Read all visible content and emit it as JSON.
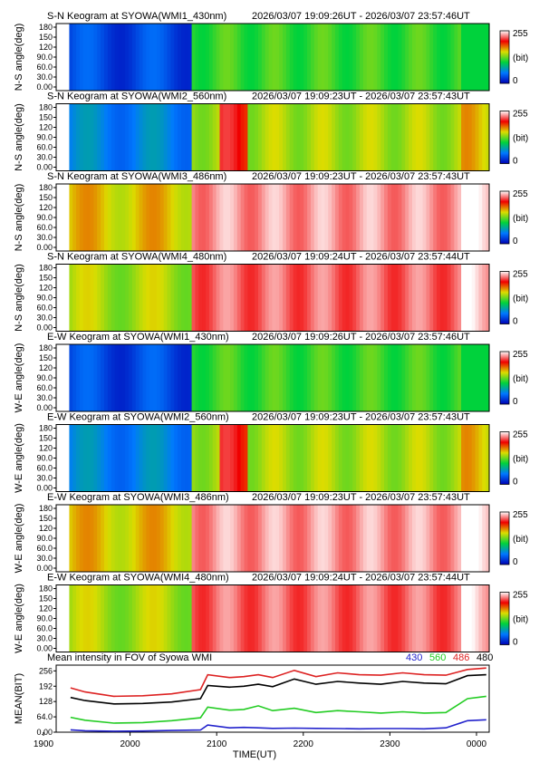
{
  "keogram_panels": [
    {
      "title": "S-N Keogram at SYOWA(WMI1_430nm)",
      "time_range": "2026/03/07 19:09:26UT - 2026/03/07 23:57:46UT",
      "ylabel": "N-S angle(deg)",
      "profile": "p430"
    },
    {
      "title": "S-N Keogram at SYOWA(WMI2_560nm)",
      "time_range": "2026/03/07 19:09:23UT - 2026/03/07 23:57:43UT",
      "ylabel": "N-S angle(deg)",
      "profile": "p560"
    },
    {
      "title": "S-N Keogram at SYOWA(WMI3_486nm)",
      "time_range": "2026/03/07 19:09:23UT - 2026/03/07 23:57:43UT",
      "ylabel": "N-S angle(deg)",
      "profile": "p486"
    },
    {
      "title": "S-N Keogram at SYOWA(WMI4_480nm)",
      "time_range": "2026/03/07 19:09:24UT - 2026/03/07 23:57:44UT",
      "ylabel": "N-S angle(deg)",
      "profile": "p480"
    },
    {
      "title": "E-W Keogram at SYOWA(WMI1_430nm)",
      "time_range": "2026/03/07 19:09:26UT - 2026/03/07 23:57:46UT",
      "ylabel": "W-E angle(deg)",
      "profile": "p430"
    },
    {
      "title": "E-W Keogram at SYOWA(WMI2_560nm)",
      "time_range": "2026/03/07 19:09:23UT - 2026/03/07 23:57:43UT",
      "ylabel": "W-E angle(deg)",
      "profile": "p560"
    },
    {
      "title": "E-W Keogram at SYOWA(WMI3_486nm)",
      "time_range": "2026/03/07 19:09:23UT - 2026/03/07 23:57:43UT",
      "ylabel": "W-E angle(deg)",
      "profile": "p486"
    },
    {
      "title": "E-W Keogram at SYOWA(WMI4_480nm)",
      "time_range": "2026/03/07 19:09:24UT - 2026/03/07 23:57:44UT",
      "ylabel": "W-E angle(deg)",
      "profile": "p480"
    }
  ],
  "keogram_yticks": [
    "180",
    "150",
    "120",
    "90.0",
    "60.0",
    "30.0",
    "0.00"
  ],
  "colorbar": {
    "max_label": "255",
    "unit_label": "(bit)",
    "min_label": "0"
  },
  "mean_panel": {
    "title": "Mean intensity in FOV of Syowa WMI",
    "ylabel": "MEAN(BIT)",
    "yticks": [
      "256",
      "192",
      "128",
      "64.0",
      "0.00"
    ],
    "legend": [
      {
        "label": "430",
        "color": "#2222cc"
      },
      {
        "label": "560",
        "color": "#22cc22"
      },
      {
        "label": "486",
        "color": "#dd2222"
      },
      {
        "label": "480",
        "color": "#000000"
      }
    ]
  },
  "xaxis": {
    "ticks": [
      "1900",
      "2000",
      "2100",
      "2200",
      "2300",
      "0000"
    ],
    "label": "TIME(UT)"
  },
  "chart_data": {
    "type": "line",
    "title": "Mean intensity in FOV of Syowa WMI",
    "xlabel": "TIME(UT)",
    "ylabel": "MEAN(BIT)",
    "ylim": [
      0,
      280
    ],
    "x": [
      "19:10",
      "19:20",
      "19:40",
      "20:00",
      "20:20",
      "20:40",
      "20:45",
      "21:00",
      "21:10",
      "21:20",
      "21:30",
      "21:45",
      "22:00",
      "22:15",
      "22:30",
      "22:45",
      "23:00",
      "23:15",
      "23:30",
      "23:45",
      "23:58"
    ],
    "series": [
      {
        "name": "430",
        "color": "#2222cc",
        "values": [
          10,
          6,
          4,
          5,
          7,
          9,
          30,
          18,
          20,
          18,
          16,
          17,
          16,
          15,
          14,
          15,
          15,
          14,
          18,
          48,
          52
        ]
      },
      {
        "name": "560",
        "color": "#22cc22",
        "values": [
          62,
          50,
          38,
          40,
          48,
          60,
          105,
          92,
          95,
          110,
          90,
          100,
          82,
          90,
          85,
          80,
          85,
          80,
          82,
          140,
          150
        ]
      },
      {
        "name": "486",
        "color": "#dd2222",
        "values": [
          185,
          168,
          150,
          152,
          160,
          178,
          240,
          228,
          232,
          240,
          228,
          258,
          232,
          248,
          240,
          238,
          248,
          240,
          238,
          262,
          268
        ]
      },
      {
        "name": "480",
        "color": "#000000",
        "values": [
          145,
          132,
          118,
          120,
          126,
          140,
          195,
          188,
          192,
          200,
          190,
          222,
          200,
          212,
          205,
          200,
          212,
          205,
          202,
          236,
          240
        ]
      }
    ]
  }
}
